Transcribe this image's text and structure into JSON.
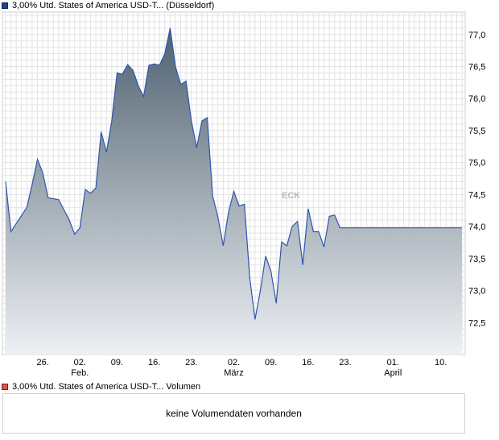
{
  "price_legend": {
    "label": "3,00% Utd. States of America USD-T... (Düsseldorf)",
    "color": "#1f3f99"
  },
  "volume_legend": {
    "label": "3,00% Utd. States of America USD-T... Volumen",
    "color": "#d9534f"
  },
  "volume_panel": {
    "message": "keine Volumendaten vorhanden"
  },
  "chart_data": {
    "type": "area",
    "title": "",
    "xlabel": "",
    "ylabel": "",
    "ylim": [
      72.0,
      77.35
    ],
    "y_ticks": [
      "72,5",
      "73,0",
      "73,5",
      "74,0",
      "74,5",
      "75,0",
      "75,5",
      "76,0",
      "76,5",
      "77,0"
    ],
    "y_tick_values": [
      72.5,
      73.0,
      73.5,
      74.0,
      74.5,
      75.0,
      75.5,
      76.0,
      76.5,
      77.0
    ],
    "x_ticks": [
      {
        "day": "26.",
        "month": "",
        "date": "2024-01-26"
      },
      {
        "day": "02.",
        "month": "Feb.",
        "date": "2024-02-02"
      },
      {
        "day": "09.",
        "month": "",
        "date": "2024-02-09"
      },
      {
        "day": "16.",
        "month": "",
        "date": "2024-02-16"
      },
      {
        "day": "23.",
        "month": "",
        "date": "2024-02-23"
      },
      {
        "day": "02.",
        "month": "März",
        "date": "2024-03-02"
      },
      {
        "day": "09.",
        "month": "",
        "date": "2024-03-09"
      },
      {
        "day": "16.",
        "month": "",
        "date": "2024-03-16"
      },
      {
        "day": "23.",
        "month": "",
        "date": "2024-03-23"
      },
      {
        "day": "01.",
        "month": "April",
        "date": "2024-04-01"
      },
      {
        "day": "10.",
        "month": "",
        "date": "2024-04-10"
      }
    ],
    "grid": true,
    "series": [
      {
        "line_color": "#2f55b0",
        "fill_top": "#4f6270",
        "fill_bottom": "#eef0f4",
        "x": [
          "2024-01-19",
          "2024-01-20",
          "2024-01-23",
          "2024-01-24",
          "2024-01-25",
          "2024-01-26",
          "2024-01-27",
          "2024-01-29",
          "2024-01-30",
          "2024-01-31",
          "2024-02-01",
          "2024-02-02",
          "2024-02-03",
          "2024-02-04",
          "2024-02-05",
          "2024-02-06",
          "2024-02-07",
          "2024-02-08",
          "2024-02-09",
          "2024-02-10",
          "2024-02-11",
          "2024-02-12",
          "2024-02-13",
          "2024-02-14",
          "2024-02-15",
          "2024-02-16",
          "2024-02-17",
          "2024-02-18",
          "2024-02-19",
          "2024-02-20",
          "2024-02-21",
          "2024-02-22",
          "2024-02-23",
          "2024-02-24",
          "2024-02-25",
          "2024-02-26",
          "2024-02-27",
          "2024-02-28",
          "2024-02-29",
          "2024-03-01",
          "2024-03-02",
          "2024-03-03",
          "2024-03-04",
          "2024-03-05",
          "2024-03-06",
          "2024-03-07",
          "2024-03-08",
          "2024-03-09",
          "2024-03-10",
          "2024-03-11",
          "2024-03-12",
          "2024-03-13",
          "2024-03-14",
          "2024-03-15",
          "2024-03-16",
          "2024-03-17",
          "2024-03-18",
          "2024-03-19",
          "2024-03-20",
          "2024-03-21",
          "2024-03-22",
          "2024-03-23",
          "2024-03-24",
          "2024-03-25",
          "2024-03-26",
          "2024-03-27",
          "2024-03-28",
          "2024-03-29",
          "2024-03-30",
          "2024-03-31",
          "2024-04-01",
          "2024-04-02",
          "2024-04-03",
          "2024-04-04",
          "2024-04-05",
          "2024-04-06",
          "2024-04-07",
          "2024-04-08",
          "2024-04-09",
          "2024-04-10",
          "2024-04-11",
          "2024-04-12",
          "2024-04-13",
          "2024-04-14"
        ],
        "y": [
          74.7,
          73.92,
          74.3,
          74.66,
          75.05,
          74.84,
          74.45,
          74.42,
          74.26,
          74.1,
          73.88,
          73.98,
          74.58,
          74.52,
          74.6,
          75.48,
          75.16,
          75.65,
          76.4,
          76.38,
          76.53,
          76.44,
          76.2,
          76.03,
          76.52,
          76.54,
          76.52,
          76.7,
          77.1,
          76.5,
          76.22,
          76.27,
          75.65,
          75.23,
          75.65,
          75.7,
          74.48,
          74.15,
          73.7,
          74.22,
          74.55,
          74.32,
          74.35,
          73.2,
          72.55,
          73.0,
          73.54,
          73.3,
          72.8,
          73.76,
          73.7,
          74.0,
          74.08,
          73.4,
          74.28,
          73.92,
          73.92,
          73.68,
          74.16,
          74.18,
          73.98,
          73.98,
          73.98,
          73.98,
          73.98,
          73.98,
          73.98,
          73.98,
          73.98,
          73.98,
          73.98,
          73.98,
          73.98,
          73.98,
          73.98,
          73.98,
          73.98,
          73.98,
          73.98,
          73.98,
          73.98,
          73.98,
          73.98,
          73.98
        ]
      }
    ]
  }
}
